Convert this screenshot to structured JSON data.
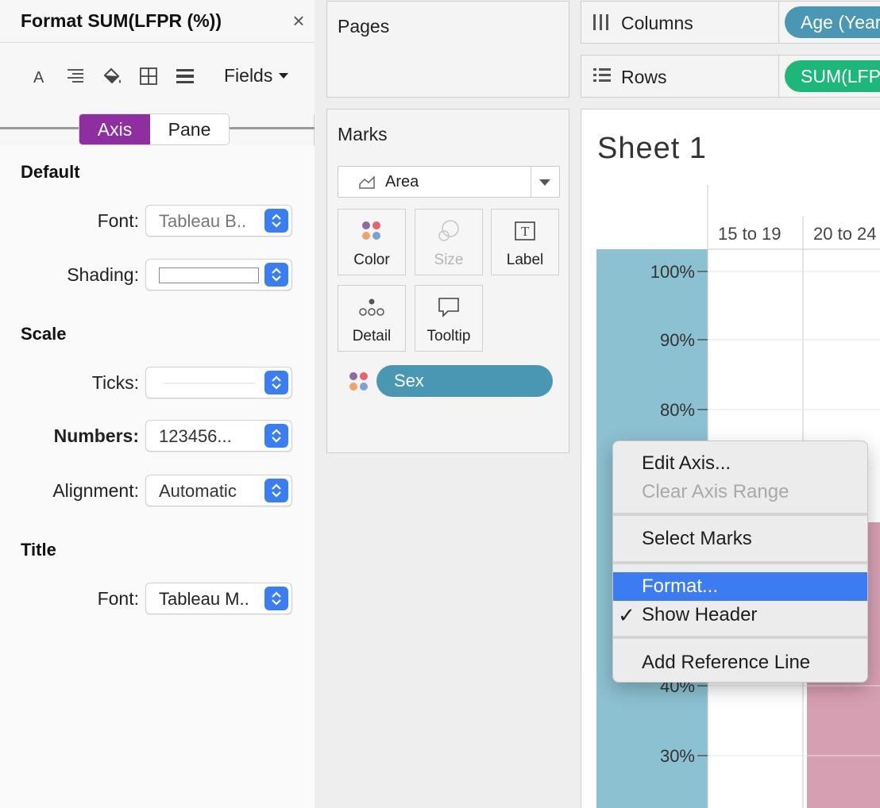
{
  "format_panel": {
    "title": "Format SUM(LFPR (%))",
    "close_glyph": "×",
    "toolbar_icons": [
      "font-icon",
      "alignment-icon",
      "shading-icon",
      "borders-icon",
      "lines-icon"
    ],
    "fields_label": "Fields",
    "tabs": [
      {
        "label": "Axis",
        "active": true
      },
      {
        "label": "Pane",
        "active": false
      }
    ],
    "sections": {
      "default": {
        "title": "Default",
        "font_label": "Font:",
        "font_value": "Tableau B..",
        "shading_label": "Shading:"
      },
      "scale": {
        "title": "Scale",
        "ticks_label": "Ticks:",
        "numbers_label": "Numbers:",
        "numbers_value": "123456...",
        "alignment_label": "Alignment:",
        "alignment_value": "Automatic"
      },
      "title": {
        "title": "Title",
        "font_label": "Font:",
        "font_value": "Tableau M.."
      }
    },
    "accent_color": "#8e2ea0"
  },
  "pages": {
    "title": "Pages"
  },
  "marks": {
    "title": "Marks",
    "mark_type": "Area",
    "buttons": [
      {
        "label": "Color",
        "icon": "color-icon",
        "enabled": true
      },
      {
        "label": "Size",
        "icon": "size-icon",
        "enabled": false
      },
      {
        "label": "Label",
        "icon": "label-icon",
        "enabled": true
      },
      {
        "label": "Detail",
        "icon": "detail-icon",
        "enabled": true
      },
      {
        "label": "Tooltip",
        "icon": "tooltip-icon",
        "enabled": true
      }
    ],
    "pill": {
      "label": "Sex",
      "color": "#4a97b4"
    }
  },
  "shelves": {
    "columns": {
      "label": "Columns",
      "pill": "Age (Year"
    },
    "rows": {
      "label": "Rows",
      "pill": "SUM(LFP"
    }
  },
  "sheet": {
    "title": "Sheet 1"
  },
  "chart_data": {
    "type": "area",
    "column_headers": [
      "15 to 19",
      "20 to 24"
    ],
    "y_ticks": [
      "100%",
      "90%",
      "80%",
      "40%",
      "30%"
    ],
    "series_colors": [
      "#8cc1d1",
      "#d6a0b2"
    ]
  },
  "context_menu": {
    "items": [
      {
        "label": "Edit Axis...",
        "enabled": true
      },
      {
        "label": "Clear Axis Range",
        "enabled": false
      },
      {
        "label": "Select Marks",
        "enabled": true
      },
      {
        "label": "Format...",
        "enabled": true,
        "highlighted": true
      },
      {
        "label": "Show Header",
        "enabled": true,
        "checked": true
      },
      {
        "label": "Add Reference Line",
        "enabled": true
      }
    ],
    "check_glyph": "✓",
    "highlight_color": "#3b7cf3"
  }
}
